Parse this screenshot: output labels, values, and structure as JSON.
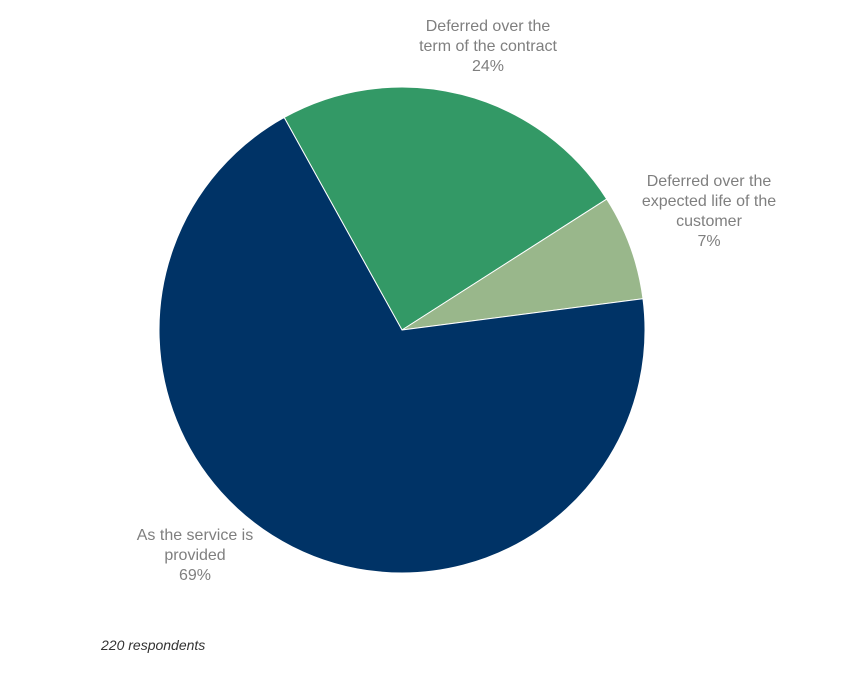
{
  "chart_data": {
    "type": "pie",
    "slices": [
      {
        "label_lines": [
          "Deferred over the",
          "term of the contract"
        ],
        "value": 24,
        "value_label": "24%",
        "color": "#339966"
      },
      {
        "label_lines": [
          "Deferred over the",
          "expected life of the",
          "customer"
        ],
        "value": 7,
        "value_label": "7%",
        "color": "#99b78b"
      },
      {
        "label_lines": [
          "As the service is",
          "provided"
        ],
        "value": 69,
        "value_label": "69%",
        "color": "#003366"
      }
    ],
    "start_angle_deg": -29,
    "direction": "clockwise",
    "legend": "none"
  },
  "footnote": "220 respondents"
}
